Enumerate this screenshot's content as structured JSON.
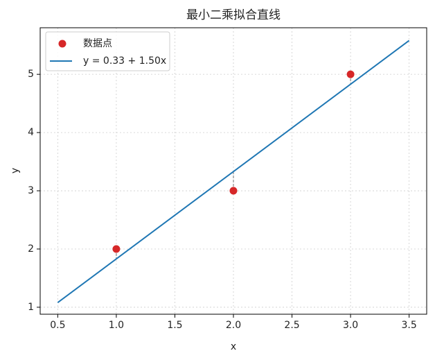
{
  "chart_data": {
    "type": "scatter",
    "title": "最小二乘拟合直线",
    "x_label": "x",
    "y_label": "y",
    "series": [
      {
        "name": "数据点",
        "type": "scatter",
        "color": "#d62728",
        "x": [
          1,
          2,
          3
        ],
        "values": [
          2,
          3,
          5
        ],
        "fitted": [
          1.83,
          3.33,
          4.83
        ]
      },
      {
        "name": "y = 0.33 + 1.50x",
        "type": "line",
        "color": "#1f77b4",
        "x": [
          0.5,
          3.5
        ],
        "values": [
          1.08,
          5.58
        ]
      }
    ],
    "xlim": [
      0.35,
      3.65
    ],
    "ylim": [
      0.88,
      5.8
    ],
    "xticks": [
      0.5,
      {
        "value": 1,
        "label": "1.0"
      },
      1.5,
      {
        "value": 2,
        "label": "2.0"
      },
      2.5,
      {
        "value": 3,
        "label": "3.0"
      },
      3.5
    ],
    "yticks": [
      1,
      2,
      3,
      4,
      5
    ],
    "grid": true,
    "legend": "upper left"
  }
}
